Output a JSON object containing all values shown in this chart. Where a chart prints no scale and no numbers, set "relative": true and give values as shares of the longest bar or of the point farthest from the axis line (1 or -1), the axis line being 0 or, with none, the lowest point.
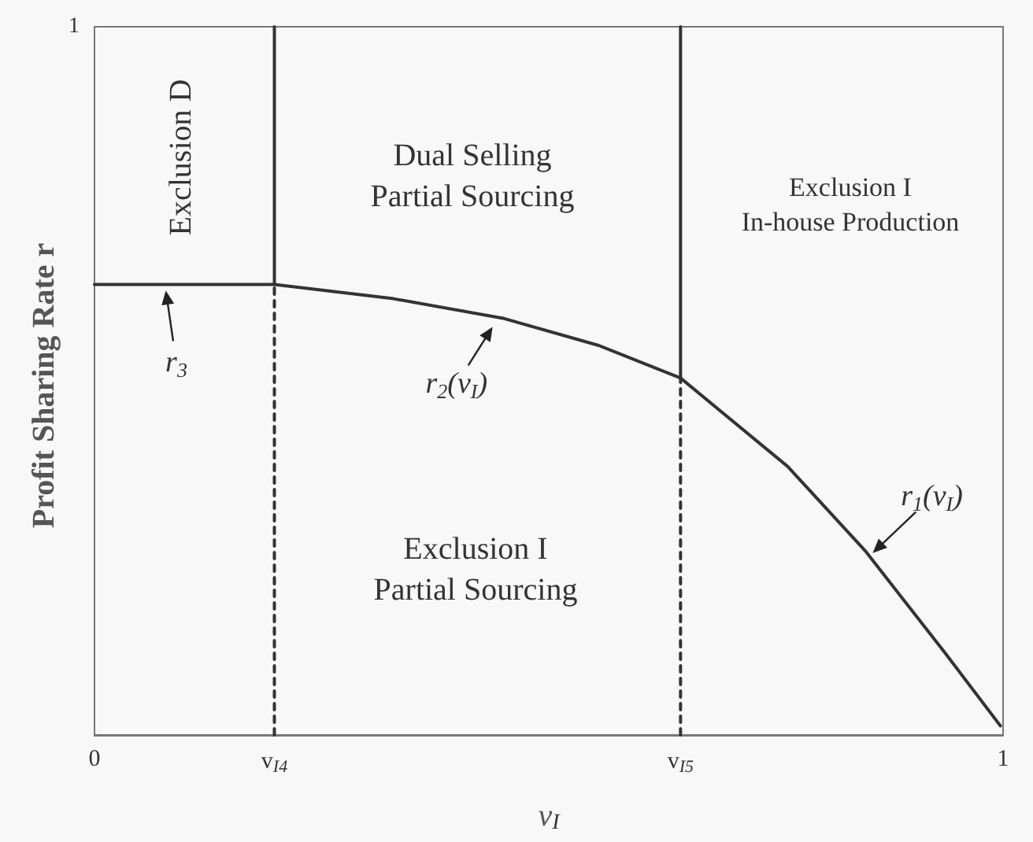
{
  "chart_data": {
    "type": "line",
    "xlabel": "v$_{I}$",
    "ylabel": "Profit Sharing Rate r",
    "xlim": [
      0,
      1
    ],
    "relative": true,
    "xticks": [
      0,
      {
        "value": 0.198,
        "label": "v$_{I4}$"
      },
      {
        "value": 0.645,
        "label": "v$_{I5}$"
      },
      1
    ],
    "marker": "none",
    "series": [
      {
        "color": "#333333",
        "line_style": "solid",
        "x": [
          0,
          0.198,
          0.329,
          0.451,
          0.555,
          0.645,
          0.763,
          0.849,
          0.936,
          0.997
        ],
        "values": [
          0.636,
          0.636,
          0.616,
          0.588,
          0.55,
          0.504,
          0.379,
          0.259,
          0.116,
          0.013
        ]
      },
      {
        "color": "#333333",
        "line_style": "solid",
        "x": [
          0.198,
          0.198
        ],
        "values": [
          0.636,
          1
        ]
      },
      {
        "color": "#333333",
        "line_style": "dashed",
        "x": [
          0.198,
          0.198
        ],
        "values": [
          0,
          0.636
        ]
      },
      {
        "color": "#333333",
        "line_style": "solid",
        "x": [
          0.645,
          0.645
        ],
        "values": [
          0.504,
          1
        ]
      },
      {
        "color": "#333333",
        "line_style": "dashed",
        "x": [
          0.645,
          0.645
        ],
        "values": [
          0,
          0.504
        ]
      }
    ],
    "annotations": [
      "Exclusion D",
      "Dual Selling\nPartial Sourcing",
      "Exclusion I\nIn-house Production",
      "Exclusion I\nPartial Sourcing",
      "1",
      {
        "text": "r$_{3}$",
        "x": 0.078,
        "y": 0.632
      },
      {
        "text": "r$_{2}$(v$_{I}$)",
        "x": 0.44,
        "y": 0.58
      },
      {
        "text": "r$_{1}$(v$_{I}$)",
        "x": 0.854,
        "y": 0.254
      }
    ]
  }
}
